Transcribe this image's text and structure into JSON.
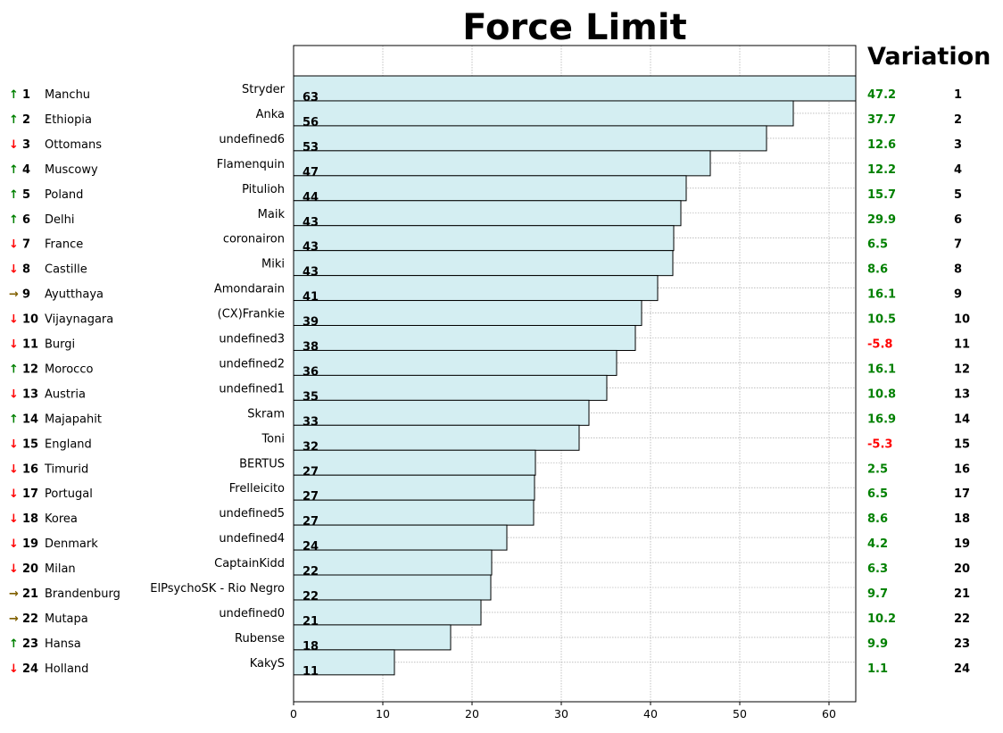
{
  "chart_data": {
    "type": "bar",
    "orientation": "horizontal",
    "title": "Force Limit",
    "variation_title": "Variation",
    "xlim": [
      0,
      63
    ],
    "xticks": [
      0,
      10,
      20,
      30,
      40,
      50,
      60
    ],
    "grid": true,
    "bar_color": "#d4eef2",
    "players": [
      {
        "name": "Stryder",
        "value": 63,
        "value_label": "63",
        "variation": "47.2",
        "rank": "1"
      },
      {
        "name": "Anka",
        "value": 56,
        "value_label": "56",
        "variation": "37.7",
        "rank": "2"
      },
      {
        "name": "undefined6",
        "value": 53,
        "value_label": "53",
        "variation": "12.6",
        "rank": "3"
      },
      {
        "name": "Flamenquin",
        "value": 46.7,
        "value_label": "47",
        "variation": "12.2",
        "rank": "4"
      },
      {
        "name": "Pitulioh",
        "value": 44,
        "value_label": "44",
        "variation": "15.7",
        "rank": "5"
      },
      {
        "name": "Maik",
        "value": 43.4,
        "value_label": "43",
        "variation": "29.9",
        "rank": "6"
      },
      {
        "name": "coronairon",
        "value": 42.6,
        "value_label": "43",
        "variation": "6.5",
        "rank": "7"
      },
      {
        "name": "Miki",
        "value": 42.5,
        "value_label": "43",
        "variation": "8.6",
        "rank": "8"
      },
      {
        "name": "Amondarain",
        "value": 40.8,
        "value_label": "41",
        "variation": "16.1",
        "rank": "9"
      },
      {
        "name": "(CX)Frankie",
        "value": 39,
        "value_label": "39",
        "variation": "10.5",
        "rank": "10"
      },
      {
        "name": "undefined3",
        "value": 38.3,
        "value_label": "38",
        "variation": "-5.8",
        "rank": "11"
      },
      {
        "name": "undefined2",
        "value": 36.2,
        "value_label": "36",
        "variation": "16.1",
        "rank": "12"
      },
      {
        "name": "undefined1",
        "value": 35.1,
        "value_label": "35",
        "variation": "10.8",
        "rank": "13"
      },
      {
        "name": "Skram",
        "value": 33.1,
        "value_label": "33",
        "variation": "16.9",
        "rank": "14"
      },
      {
        "name": "Toni",
        "value": 32,
        "value_label": "32",
        "variation": "-5.3",
        "rank": "15"
      },
      {
        "name": "BERTUS",
        "value": 27.1,
        "value_label": "27",
        "variation": "2.5",
        "rank": "16"
      },
      {
        "name": "Frelleicito",
        "value": 27,
        "value_label": "27",
        "variation": "6.5",
        "rank": "17"
      },
      {
        "name": "undefined5",
        "value": 26.9,
        "value_label": "27",
        "variation": "8.6",
        "rank": "18"
      },
      {
        "name": "undefined4",
        "value": 23.9,
        "value_label": "24",
        "variation": "4.2",
        "rank": "19"
      },
      {
        "name": "CaptainKidd",
        "value": 22.2,
        "value_label": "22",
        "variation": "6.3",
        "rank": "20"
      },
      {
        "name": "ElPsychoSK - Rio Negro",
        "value": 22.1,
        "value_label": "22",
        "variation": "9.7",
        "rank": "21"
      },
      {
        "name": "undefined0",
        "value": 21,
        "value_label": "21",
        "variation": "10.2",
        "rank": "22"
      },
      {
        "name": "Rubense",
        "value": 17.6,
        "value_label": "18",
        "variation": "9.9",
        "rank": "23"
      },
      {
        "name": "KakyS",
        "value": 11.3,
        "value_label": "11",
        "variation": "1.1",
        "rank": "24"
      }
    ],
    "nations": [
      {
        "arrow": "↑",
        "trend": "up",
        "rank": "1",
        "name": "Manchu"
      },
      {
        "arrow": "↑",
        "trend": "up",
        "rank": "2",
        "name": "Ethiopia"
      },
      {
        "arrow": "↓",
        "trend": "down",
        "rank": "3",
        "name": "Ottomans"
      },
      {
        "arrow": "↑",
        "trend": "up",
        "rank": "4",
        "name": "Muscowy"
      },
      {
        "arrow": "↑",
        "trend": "up",
        "rank": "5",
        "name": "Poland"
      },
      {
        "arrow": "↑",
        "trend": "up",
        "rank": "6",
        "name": "Delhi"
      },
      {
        "arrow": "↓",
        "trend": "down",
        "rank": "7",
        "name": "France"
      },
      {
        "arrow": "↓",
        "trend": "down",
        "rank": "8",
        "name": "Castille"
      },
      {
        "arrow": "→",
        "trend": "same",
        "rank": "9",
        "name": "Ayutthaya"
      },
      {
        "arrow": "↓",
        "trend": "down",
        "rank": "10",
        "name": "Vijaynagara"
      },
      {
        "arrow": "↓",
        "trend": "down",
        "rank": "11",
        "name": "Burgi"
      },
      {
        "arrow": "↑",
        "trend": "up",
        "rank": "12",
        "name": "Morocco"
      },
      {
        "arrow": "↓",
        "trend": "down",
        "rank": "13",
        "name": "Austria"
      },
      {
        "arrow": "↑",
        "trend": "up",
        "rank": "14",
        "name": "Majapahit"
      },
      {
        "arrow": "↓",
        "trend": "down",
        "rank": "15",
        "name": "England"
      },
      {
        "arrow": "↓",
        "trend": "down",
        "rank": "16",
        "name": "Timurid"
      },
      {
        "arrow": "↓",
        "trend": "down",
        "rank": "17",
        "name": "Portugal"
      },
      {
        "arrow": "↓",
        "trend": "down",
        "rank": "18",
        "name": "Korea"
      },
      {
        "arrow": "↓",
        "trend": "down",
        "rank": "19",
        "name": "Denmark"
      },
      {
        "arrow": "↓",
        "trend": "down",
        "rank": "20",
        "name": "Milan"
      },
      {
        "arrow": "→",
        "trend": "same",
        "rank": "21",
        "name": "Brandenburg"
      },
      {
        "arrow": "→",
        "trend": "same",
        "rank": "22",
        "name": "Mutapa"
      },
      {
        "arrow": "↑",
        "trend": "up",
        "rank": "23",
        "name": "Hansa"
      },
      {
        "arrow": "↓",
        "trend": "down",
        "rank": "24",
        "name": "Holland"
      }
    ],
    "colors": {
      "up": "#008000",
      "down": "#ff0000",
      "same": "#806000",
      "positive": "#008000",
      "negative": "#ff0000"
    }
  }
}
